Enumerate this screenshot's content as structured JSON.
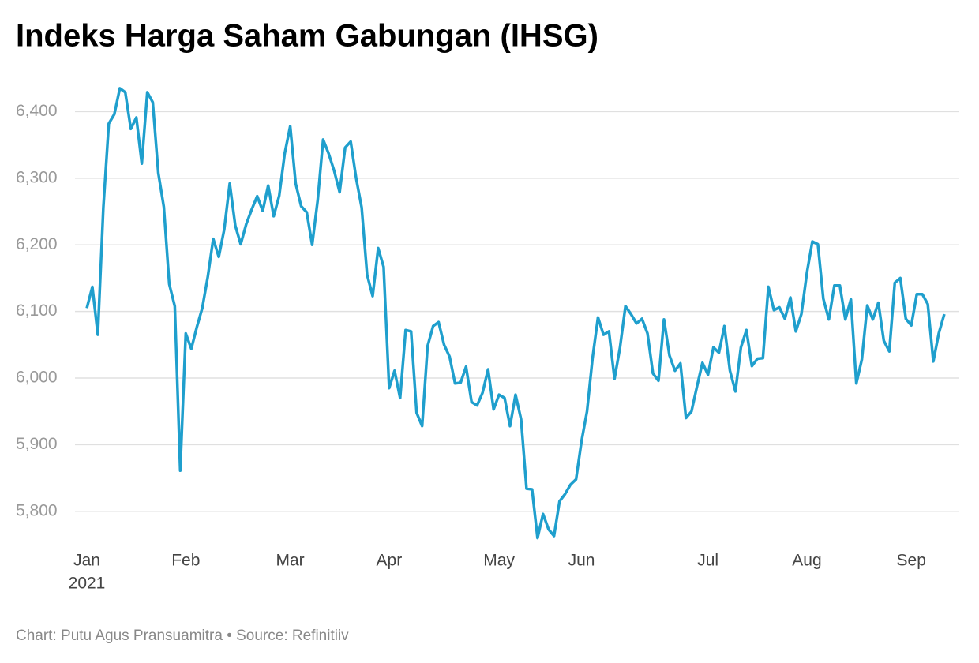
{
  "chart_data": {
    "type": "line",
    "title": "Indeks Harga Saham Gabungan (IHSG)",
    "footer": "Chart: Putu Agus Pransuamitra • Source: Refinitiiv",
    "x_sublabel": "2021",
    "color": "#1f9fcd",
    "grid": true,
    "categories": [
      "Jan",
      null,
      null,
      null,
      null,
      null,
      null,
      null,
      null,
      null,
      null,
      null,
      null,
      null,
      null,
      null,
      null,
      null,
      "Feb",
      null,
      null,
      null,
      null,
      null,
      null,
      null,
      null,
      null,
      null,
      null,
      null,
      null,
      null,
      null,
      null,
      null,
      null,
      "Mar",
      null,
      null,
      null,
      null,
      null,
      null,
      null,
      null,
      null,
      null,
      null,
      null,
      null,
      null,
      null,
      null,
      null,
      "Apr",
      null,
      null,
      null,
      null,
      null,
      null,
      null,
      null,
      null,
      null,
      null,
      null,
      null,
      null,
      null,
      null,
      null,
      null,
      null,
      "May",
      null,
      null,
      null,
      null,
      null,
      null,
      null,
      null,
      null,
      null,
      null,
      null,
      null,
      null,
      "Jun",
      null,
      null,
      null,
      null,
      null,
      null,
      null,
      null,
      null,
      null,
      null,
      null,
      null,
      null,
      null,
      null,
      null,
      null,
      null,
      null,
      null,
      null,
      "Jul",
      null,
      null,
      null,
      null,
      null,
      null,
      null,
      null,
      null,
      null,
      null,
      null,
      null,
      null,
      null,
      null,
      null,
      "Aug",
      null,
      null,
      null,
      null,
      null,
      null,
      null,
      null,
      null,
      null,
      null,
      null,
      null,
      null,
      null,
      null,
      null,
      null,
      "Sep",
      null,
      null,
      null,
      null,
      null,
      null
    ],
    "values": [
      6105,
      6137,
      6065,
      6256,
      6382,
      6396,
      6435,
      6429,
      6374,
      6391,
      6322,
      6429,
      6414,
      6308,
      6257,
      6141,
      6108,
      5861,
      6067,
      6044,
      6076,
      6105,
      6152,
      6209,
      6182,
      6223,
      6292,
      6229,
      6201,
      6231,
      6253,
      6273,
      6251,
      6289,
      6243,
      6274,
      6337,
      6378,
      6292,
      6258,
      6249,
      6200,
      6267,
      6358,
      6337,
      6311,
      6279,
      6346,
      6355,
      6300,
      6256,
      6155,
      6123,
      6195,
      6167,
      5985,
      6011,
      5970,
      6072,
      6070,
      5948,
      5928,
      6048,
      6078,
      6084,
      6050,
      6032,
      5992,
      5993,
      6017,
      5964,
      5959,
      5978,
      6013,
      5953,
      5975,
      5970,
      5928,
      5975,
      5938,
      5834,
      5833,
      5760,
      5796,
      5773,
      5763,
      5815,
      5826,
      5840,
      5848,
      5905,
      5950,
      6030,
      6091,
      6065,
      6070,
      5999,
      6046,
      6108,
      6096,
      6082,
      6089,
      6067,
      6007,
      5996,
      6088,
      6034,
      6011,
      6022,
      5940,
      5950,
      5987,
      6023,
      6005,
      6046,
      6038,
      6078,
      6011,
      5980,
      6046,
      6072,
      6018,
      6029,
      6030,
      6137,
      6102,
      6106,
      6089,
      6121,
      6070,
      6096,
      6158,
      6205,
      6201,
      6119,
      6088,
      6139,
      6139,
      6088,
      6118,
      5992,
      6028,
      6109,
      6088,
      6113,
      6056,
      6040,
      6143,
      6150,
      6089,
      6079,
      6126,
      6126,
      6111,
      6025,
      6067,
      6096
    ],
    "ylim": [
      5750,
      6455
    ],
    "yticks": [
      {
        "value": 5800,
        "label": "5,800"
      },
      {
        "value": 5900,
        "label": "5,900"
      },
      {
        "value": 6000,
        "label": "6,000"
      },
      {
        "value": 6100,
        "label": "6,100"
      },
      {
        "value": 6200,
        "label": "6,200"
      },
      {
        "value": 6300,
        "label": "6,300"
      },
      {
        "value": 6400,
        "label": "6,400"
      }
    ]
  }
}
